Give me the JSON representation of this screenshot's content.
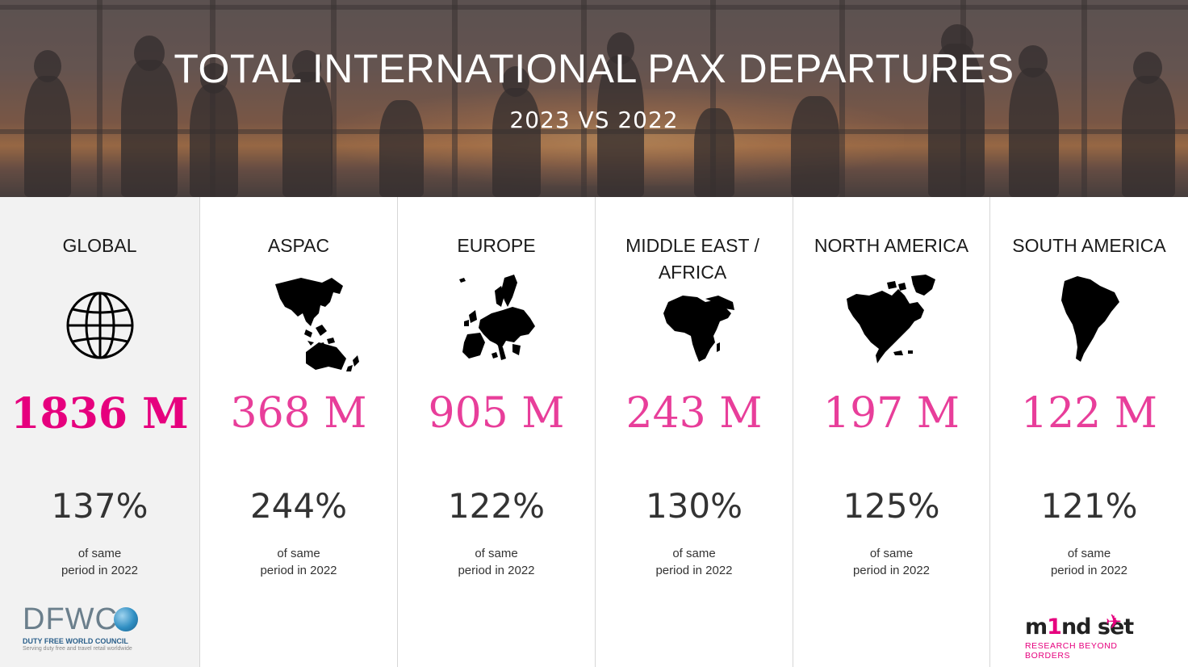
{
  "header": {
    "title": "TOTAL INTERNATIONAL PAX DEPARTURES",
    "subtitle": "2023 VS 2022"
  },
  "regions": [
    {
      "name": "GLOBAL",
      "icon": "globe-icon",
      "value": "1836 M",
      "percent": "137%",
      "note_line1": "of same",
      "note_line2": "period in 2022"
    },
    {
      "name": "ASPAC",
      "icon": "asia-pacific-map-icon",
      "value": "368 M",
      "percent": "244%",
      "note_line1": "of same",
      "note_line2": "period in 2022"
    },
    {
      "name": "EUROPE",
      "icon": "europe-map-icon",
      "value": "905 M",
      "percent": "122%",
      "note_line1": "of same",
      "note_line2": "period in 2022"
    },
    {
      "name": "MIDDLE EAST / AFRICA",
      "icon": "africa-map-icon",
      "value": "243 M",
      "percent": "130%",
      "note_line1": "of same",
      "note_line2": "period in 2022"
    },
    {
      "name": "NORTH AMERICA",
      "icon": "north-america-map-icon",
      "value": "197 M",
      "percent": "125%",
      "note_line1": "of same",
      "note_line2": "period in 2022"
    },
    {
      "name": "SOUTH AMERICA",
      "icon": "south-america-map-icon",
      "value": "122 M",
      "percent": "121%",
      "note_line1": "of same",
      "note_line2": "period in 2022"
    }
  ],
  "logos": {
    "dfwc": {
      "letters": "DFWC",
      "name": "DUTY FREE WORLD COUNCIL",
      "tagline": "Serving duty free and travel retail worldwide"
    },
    "mindset": {
      "word_start": "m",
      "word_one": "1",
      "word_end": "nd set",
      "tagline": "RESEARCH BEYOND BORDERS"
    }
  },
  "colors": {
    "value_accent": "#e83e9a",
    "global_accent": "#e6007e",
    "text": "#333333"
  }
}
